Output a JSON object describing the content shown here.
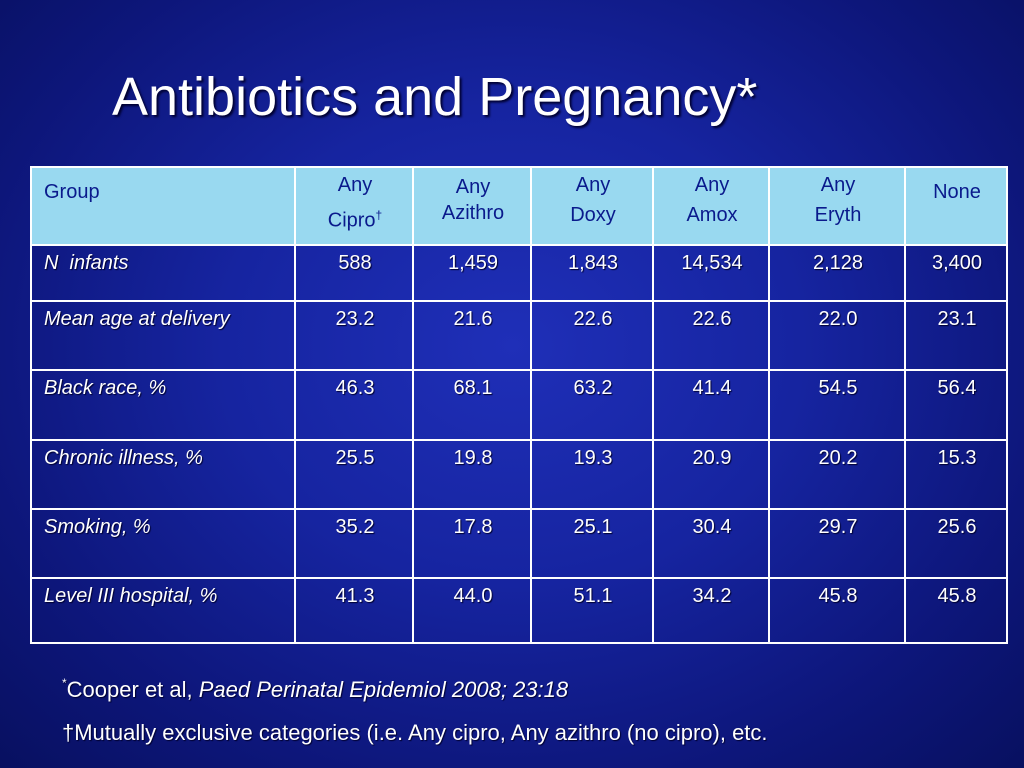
{
  "title": "Antibiotics and Pregnancy*",
  "table": {
    "header": {
      "group": "Group",
      "cipro_line1": "Any",
      "cipro_line2": "Cipro",
      "cipro_mark": "†",
      "azithro_line1": "Any",
      "azithro_line2": "Azithro",
      "doxy_line1": "Any",
      "doxy_line2": "Doxy",
      "amox_line1": "Any",
      "amox_line2": "Amox",
      "eryth_line1": "Any",
      "eryth_line2": "Eryth",
      "none": "None"
    },
    "rows": [
      {
        "label": "N  infants",
        "values": [
          "588",
          "1,459",
          "1,843",
          "14,534",
          "2,128",
          "3,400"
        ]
      },
      {
        "label": "Mean age at delivery",
        "values": [
          "23.2",
          "21.6",
          "22.6",
          "22.6",
          "22.0",
          "23.1"
        ]
      },
      {
        "label": "Black race, %",
        "values": [
          "46.3",
          "68.1",
          "63.2",
          "41.4",
          "54.5",
          "56.4"
        ]
      },
      {
        "label": "Chronic illness, %",
        "values": [
          "25.5",
          "19.8",
          "19.3",
          "20.9",
          "20.2",
          "15.3"
        ]
      },
      {
        "label": "Smoking, %",
        "values": [
          "35.2",
          "17.8",
          "25.1",
          "30.4",
          "29.7",
          "25.6"
        ]
      },
      {
        "label": "Level III hospital, %",
        "values": [
          "41.3",
          "44.0",
          "51.1",
          "34.2",
          "45.8",
          "45.8"
        ]
      }
    ]
  },
  "footnotes": {
    "fn1_mark": "*",
    "fn1_authors": "Cooper et al, ",
    "fn1_journal": "Paed Perinatal Epidemiol 2008; 23:18",
    "fn2": "†Mutually exclusive categories (i.e. Any cipro, Any azithro (no cipro), etc."
  },
  "colors": {
    "background": "#1624a0",
    "header_fill": "#99d9f0",
    "header_text": "#0a1a8c",
    "text": "#ffffff"
  }
}
